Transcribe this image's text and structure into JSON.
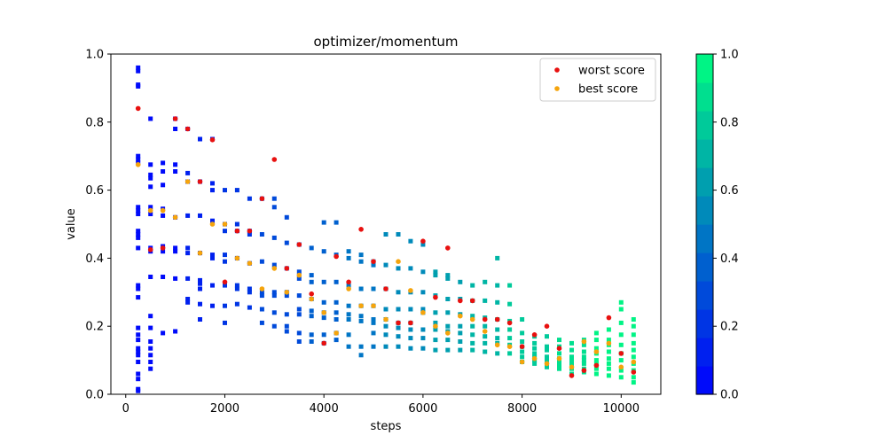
{
  "chart_data": {
    "type": "scatter",
    "title": "optimizer/momentum",
    "xlabel": "steps",
    "ylabel": "value",
    "xlim": [
      -300,
      10800
    ],
    "ylim": [
      0,
      1
    ],
    "x_ticks": [
      0,
      2000,
      4000,
      6000,
      8000,
      10000
    ],
    "y_ticks": [
      0.0,
      0.2,
      0.4,
      0.6,
      0.8,
      1.0
    ],
    "x_tick_labels": [
      "0",
      "2000",
      "4000",
      "6000",
      "8000",
      "10000"
    ],
    "y_tick_labels": [
      "0.0",
      "0.2",
      "0.4",
      "0.6",
      "0.8",
      "1.0"
    ],
    "grid": false,
    "legend_position": "top-right",
    "colorbar": {
      "colormap": "winter",
      "range": [
        0,
        1
      ],
      "levels": 12,
      "ticks": [
        0.0,
        0.2,
        0.4,
        0.6,
        0.8,
        1.0
      ],
      "tick_labels": [
        "0.0",
        "0.2",
        "0.4",
        "0.6",
        "0.8",
        "1.0"
      ]
    },
    "trials": {
      "name": "trials",
      "marker": "square",
      "color_by": "steps",
      "x": [
        250,
        250,
        250,
        250,
        250,
        250,
        250,
        250,
        250,
        250,
        250,
        250,
        250,
        250,
        250,
        250,
        250,
        250,
        250,
        250,
        250,
        250,
        250,
        250,
        250,
        250,
        250,
        250,
        500,
        500,
        500,
        500,
        500,
        500,
        500,
        500,
        500,
        500,
        500,
        500,
        500,
        500,
        500,
        500,
        500,
        750,
        750,
        750,
        750,
        750,
        750,
        750,
        750,
        750,
        1000,
        1000,
        1000,
        1000,
        1000,
        1000,
        1000,
        1000,
        1000,
        1250,
        1250,
        1250,
        1250,
        1250,
        1250,
        1250,
        1250,
        1250,
        1500,
        1500,
        1500,
        1500,
        1500,
        1500,
        1500,
        1500,
        1500,
        1750,
        1750,
        1750,
        1750,
        1750,
        1750,
        1750,
        1750,
        2000,
        2000,
        2000,
        2000,
        2000,
        2000,
        2000,
        2000,
        2250,
        2250,
        2250,
        2250,
        2250,
        2250,
        2250,
        2500,
        2500,
        2500,
        2500,
        2500,
        2500,
        2500,
        2750,
        2750,
        2750,
        2750,
        2750,
        2750,
        2750,
        3000,
        3000,
        3000,
        3000,
        3000,
        3000,
        3000,
        3000,
        3250,
        3250,
        3250,
        3250,
        3250,
        3250,
        3250,
        3250,
        3500,
        3500,
        3500,
        3500,
        3500,
        3500,
        3500,
        3500,
        3750,
        3750,
        3750,
        3750,
        3750,
        3750,
        3750,
        3750,
        4000,
        4000,
        4000,
        4000,
        4000,
        4000,
        4000,
        4000,
        4250,
        4250,
        4250,
        4250,
        4250,
        4250,
        4250,
        4250,
        4500,
        4500,
        4500,
        4500,
        4500,
        4500,
        4500,
        4500,
        4750,
        4750,
        4750,
        4750,
        4750,
        4750,
        4750,
        4750,
        5000,
        5000,
        5000,
        5000,
        5000,
        5000,
        5000,
        5000,
        5250,
        5250,
        5250,
        5250,
        5250,
        5250,
        5250,
        5250,
        5500,
        5500,
        5500,
        5500,
        5500,
        5500,
        5500,
        5500,
        5750,
        5750,
        5750,
        5750,
        5750,
        5750,
        5750,
        5750,
        6000,
        6000,
        6000,
        6000,
        6000,
        6000,
        6000,
        6000,
        6250,
        6250,
        6250,
        6250,
        6250,
        6250,
        6250,
        6250,
        6500,
        6500,
        6500,
        6500,
        6500,
        6500,
        6500,
        6500,
        6750,
        6750,
        6750,
        6750,
        6750,
        6750,
        6750,
        7000,
        7000,
        7000,
        7000,
        7000,
        7000,
        7000,
        7250,
        7250,
        7250,
        7250,
        7250,
        7250,
        7250,
        7500,
        7500,
        7500,
        7500,
        7500,
        7500,
        7500,
        7500,
        7750,
        7750,
        7750,
        7750,
        7750,
        7750,
        7750,
        8000,
        8000,
        8000,
        8000,
        8000,
        8000,
        8000,
        8250,
        8250,
        8250,
        8250,
        8250,
        8250,
        8250,
        8500,
        8500,
        8500,
        8500,
        8500,
        8500,
        8500,
        8750,
        8750,
        8750,
        8750,
        8750,
        8750,
        8750,
        9000,
        9000,
        9000,
        9000,
        9000,
        9000,
        9000,
        9250,
        9250,
        9250,
        9250,
        9250,
        9250,
        9250,
        9250,
        9500,
        9500,
        9500,
        9500,
        9500,
        9500,
        9500,
        9500,
        9750,
        9750,
        9750,
        9750,
        9750,
        9750,
        9750,
        9750,
        10000,
        10000,
        10000,
        10000,
        10000,
        10000,
        10000,
        10000,
        10000,
        10250,
        10250,
        10250,
        10250,
        10250,
        10250,
        10250,
        10250,
        10250,
        10250
      ],
      "y": [
        0.96,
        0.95,
        0.91,
        0.905,
        0.7,
        0.69,
        0.68,
        0.55,
        0.54,
        0.53,
        0.48,
        0.47,
        0.46,
        0.43,
        0.32,
        0.31,
        0.285,
        0.195,
        0.175,
        0.16,
        0.135,
        0.125,
        0.115,
        0.095,
        0.06,
        0.045,
        0.015,
        0.01,
        0.81,
        0.675,
        0.645,
        0.635,
        0.61,
        0.55,
        0.53,
        0.43,
        0.42,
        0.345,
        0.23,
        0.195,
        0.155,
        0.135,
        0.115,
        0.095,
        0.075,
        0.68,
        0.655,
        0.615,
        0.545,
        0.525,
        0.435,
        0.42,
        0.345,
        0.18,
        0.81,
        0.78,
        0.675,
        0.655,
        0.52,
        0.43,
        0.42,
        0.34,
        0.185,
        0.78,
        0.65,
        0.625,
        0.525,
        0.43,
        0.415,
        0.34,
        0.28,
        0.27,
        0.75,
        0.625,
        0.525,
        0.415,
        0.335,
        0.325,
        0.31,
        0.265,
        0.22,
        0.75,
        0.62,
        0.6,
        0.51,
        0.41,
        0.4,
        0.32,
        0.26,
        0.6,
        0.5,
        0.48,
        0.41,
        0.39,
        0.32,
        0.26,
        0.21,
        0.6,
        0.5,
        0.48,
        0.4,
        0.32,
        0.31,
        0.265,
        0.575,
        0.48,
        0.47,
        0.385,
        0.31,
        0.3,
        0.255,
        0.575,
        0.47,
        0.39,
        0.3,
        0.29,
        0.25,
        0.21,
        0.575,
        0.55,
        0.46,
        0.38,
        0.3,
        0.29,
        0.24,
        0.2,
        0.52,
        0.445,
        0.37,
        0.3,
        0.29,
        0.235,
        0.2,
        0.185,
        0.44,
        0.36,
        0.34,
        0.29,
        0.25,
        0.235,
        0.18,
        0.155,
        0.43,
        0.35,
        0.33,
        0.28,
        0.245,
        0.23,
        0.175,
        0.155,
        0.505,
        0.42,
        0.33,
        0.27,
        0.24,
        0.225,
        0.175,
        0.15,
        0.505,
        0.41,
        0.33,
        0.27,
        0.24,
        0.22,
        0.18,
        0.16,
        0.42,
        0.4,
        0.32,
        0.26,
        0.235,
        0.22,
        0.175,
        0.14,
        0.41,
        0.39,
        0.31,
        0.26,
        0.23,
        0.215,
        0.14,
        0.115,
        0.39,
        0.38,
        0.31,
        0.26,
        0.22,
        0.21,
        0.18,
        0.14,
        0.47,
        0.38,
        0.31,
        0.25,
        0.22,
        0.2,
        0.175,
        0.14,
        0.47,
        0.37,
        0.3,
        0.25,
        0.21,
        0.195,
        0.17,
        0.14,
        0.45,
        0.37,
        0.3,
        0.25,
        0.21,
        0.19,
        0.165,
        0.135,
        0.44,
        0.36,
        0.3,
        0.25,
        0.24,
        0.19,
        0.165,
        0.135,
        0.36,
        0.35,
        0.29,
        0.24,
        0.21,
        0.19,
        0.16,
        0.13,
        0.35,
        0.34,
        0.28,
        0.24,
        0.2,
        0.185,
        0.16,
        0.13,
        0.33,
        0.28,
        0.235,
        0.2,
        0.18,
        0.155,
        0.13,
        0.32,
        0.275,
        0.23,
        0.2,
        0.175,
        0.15,
        0.13,
        0.33,
        0.275,
        0.225,
        0.2,
        0.17,
        0.15,
        0.125,
        0.4,
        0.32,
        0.27,
        0.22,
        0.19,
        0.165,
        0.15,
        0.12,
        0.32,
        0.265,
        0.215,
        0.19,
        0.165,
        0.145,
        0.12,
        0.22,
        0.18,
        0.155,
        0.14,
        0.125,
        0.11,
        0.095,
        0.17,
        0.15,
        0.135,
        0.12,
        0.11,
        0.1,
        0.09,
        0.17,
        0.14,
        0.13,
        0.11,
        0.1,
        0.09,
        0.08,
        0.16,
        0.14,
        0.12,
        0.105,
        0.095,
        0.085,
        0.075,
        0.15,
        0.13,
        0.11,
        0.1,
        0.09,
        0.075,
        0.06,
        0.16,
        0.145,
        0.125,
        0.11,
        0.1,
        0.09,
        0.075,
        0.065,
        0.18,
        0.16,
        0.135,
        0.12,
        0.1,
        0.09,
        0.075,
        0.06,
        0.19,
        0.16,
        0.145,
        0.125,
        0.105,
        0.09,
        0.075,
        0.055,
        0.27,
        0.25,
        0.21,
        0.175,
        0.145,
        0.12,
        0.1,
        0.07,
        0.05,
        0.22,
        0.2,
        0.175,
        0.15,
        0.13,
        0.11,
        0.09,
        0.07,
        0.05,
        0.035
      ]
    },
    "series": [
      {
        "name": "worst score",
        "color": "#e8100f",
        "marker": "circle",
        "x": [
          250,
          500,
          750,
          1000,
          1250,
          1500,
          1750,
          2000,
          2250,
          2500,
          2750,
          3000,
          3250,
          3500,
          3750,
          4000,
          4250,
          4500,
          4750,
          5000,
          5250,
          5500,
          5750,
          6000,
          6250,
          6500,
          6750,
          7000,
          7250,
          7500,
          7750,
          8000,
          8250,
          8500,
          8750,
          9000,
          9250,
          9500,
          9750,
          10000,
          10250
        ],
        "y": [
          0.84,
          0.425,
          0.43,
          0.81,
          0.78,
          0.625,
          0.748,
          0.33,
          0.48,
          0.48,
          0.575,
          0.69,
          0.37,
          0.44,
          0.295,
          0.15,
          0.405,
          0.33,
          0.485,
          0.39,
          0.31,
          0.21,
          0.21,
          0.45,
          0.285,
          0.43,
          0.275,
          0.275,
          0.22,
          0.22,
          0.21,
          0.14,
          0.175,
          0.2,
          0.135,
          0.055,
          0.07,
          0.085,
          0.225,
          0.12,
          0.065
        ]
      },
      {
        "name": "best score",
        "color": "#f5a40c",
        "marker": "circle",
        "x": [
          250,
          500,
          750,
          1000,
          1250,
          1500,
          1750,
          2000,
          2250,
          2500,
          2750,
          3000,
          3250,
          3500,
          3750,
          4000,
          4250,
          4500,
          4750,
          5000,
          5250,
          5500,
          5750,
          6000,
          6250,
          6500,
          6750,
          7000,
          7250,
          7500,
          7750,
          8000,
          8250,
          8500,
          8750,
          9000,
          9250,
          9500,
          9750,
          10000,
          10250
        ],
        "y": [
          0.675,
          0.54,
          0.54,
          0.52,
          0.625,
          0.415,
          0.5,
          0.5,
          0.4,
          0.385,
          0.31,
          0.37,
          0.3,
          0.35,
          0.28,
          0.24,
          0.18,
          0.31,
          0.26,
          0.26,
          0.22,
          0.39,
          0.305,
          0.24,
          0.2,
          0.18,
          0.23,
          0.22,
          0.185,
          0.145,
          0.14,
          0.095,
          0.105,
          0.09,
          0.105,
          0.08,
          0.155,
          0.125,
          0.15,
          0.08,
          0.095
        ]
      }
    ]
  }
}
